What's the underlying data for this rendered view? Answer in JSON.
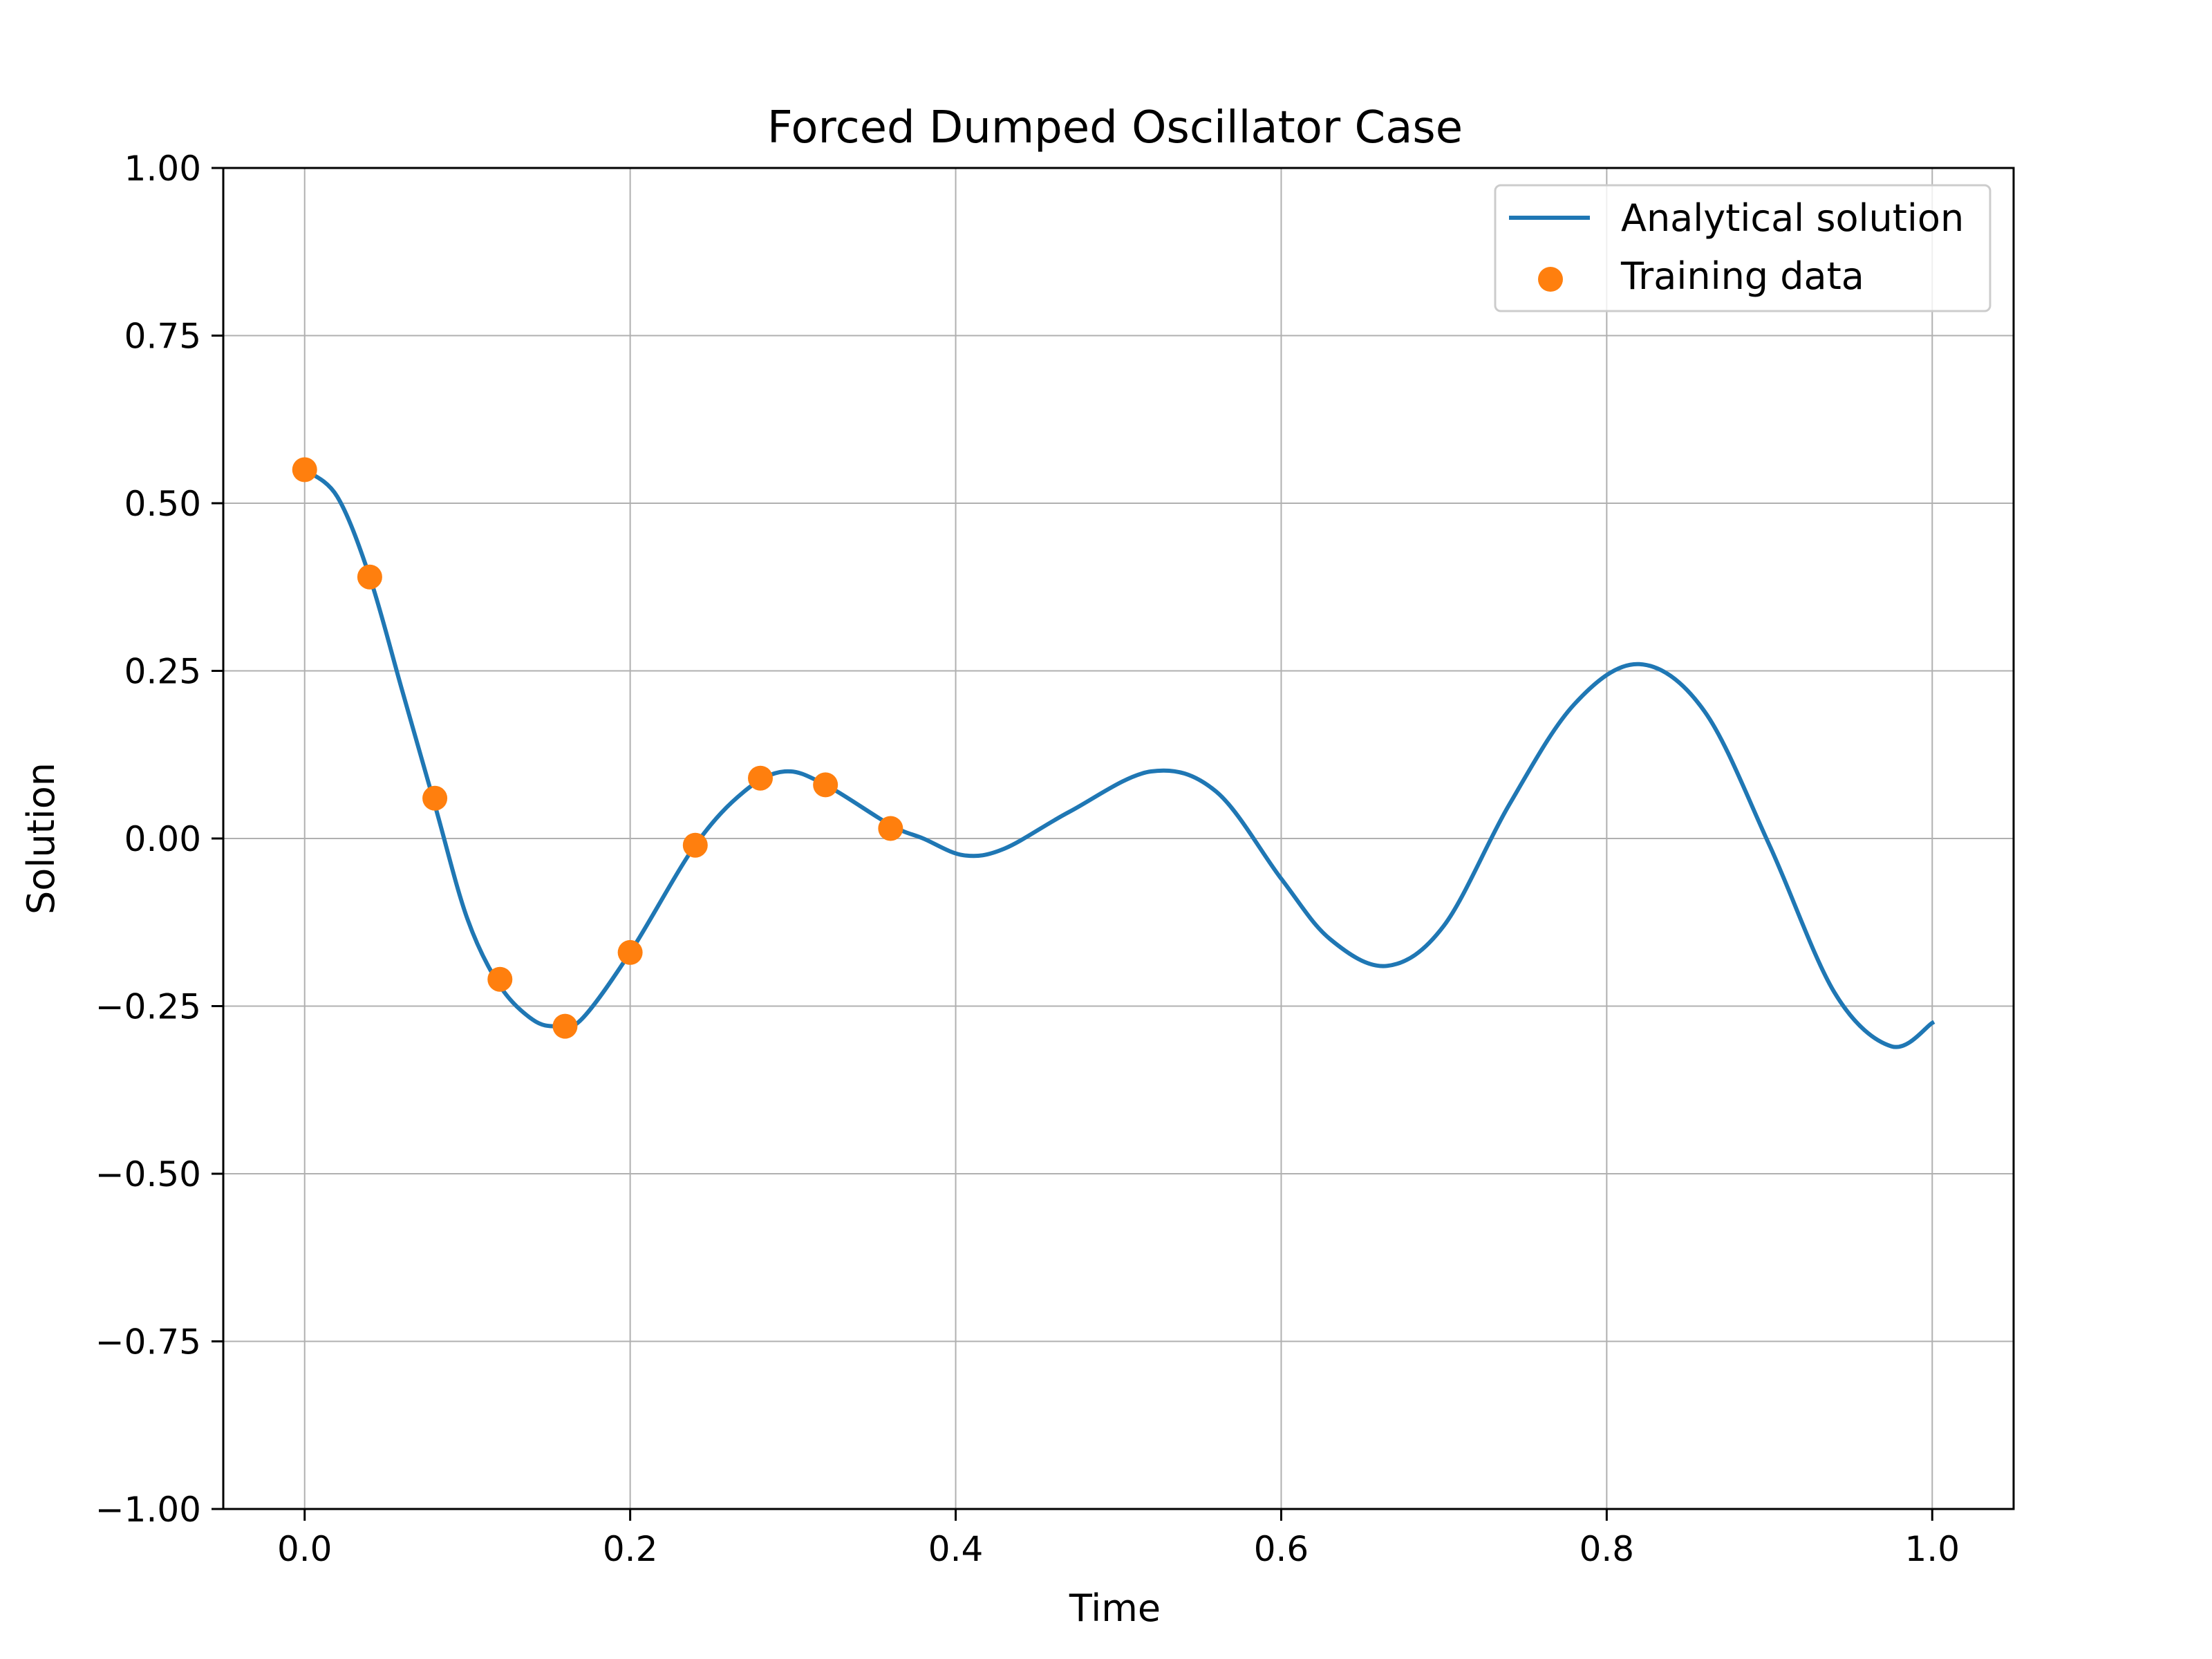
{
  "chart_data": {
    "type": "line",
    "title": "Forced Dumped Oscillator Case",
    "xlabel": "Time",
    "ylabel": "Solution",
    "xlim": [
      -0.05,
      1.05
    ],
    "ylim": [
      -1.0,
      1.0
    ],
    "grid": true,
    "legend_position": "top-right",
    "x_ticks": [
      "0.0",
      "0.2",
      "0.4",
      "0.6",
      "0.8",
      "1.0"
    ],
    "x_tick_values": [
      0.0,
      0.2,
      0.4,
      0.6,
      0.8,
      1.0
    ],
    "y_ticks": [
      "1.00",
      "0.75",
      "0.50",
      "0.25",
      "0.00",
      "−0.25",
      "−0.50",
      "−0.75",
      "−1.00"
    ],
    "y_tick_values": [
      1.0,
      0.75,
      0.5,
      0.25,
      0.0,
      -0.25,
      -0.5,
      -0.75,
      -1.0
    ],
    "series": [
      {
        "name": "Analytical solution",
        "kind": "line",
        "color": "#1f77b4",
        "x": [
          0.0,
          0.02,
          0.04,
          0.06,
          0.08,
          0.1,
          0.12,
          0.14,
          0.155,
          0.17,
          0.2,
          0.24,
          0.27,
          0.295,
          0.32,
          0.36,
          0.38,
          0.405,
          0.43,
          0.47,
          0.52,
          0.56,
          0.6,
          0.63,
          0.665,
          0.7,
          0.74,
          0.78,
          0.82,
          0.86,
          0.9,
          0.94,
          0.975,
          1.0
        ],
        "y": [
          0.55,
          0.51,
          0.39,
          0.22,
          0.05,
          -0.12,
          -0.22,
          -0.27,
          -0.28,
          -0.27,
          -0.17,
          -0.01,
          0.07,
          0.1,
          0.08,
          0.02,
          0.0,
          -0.025,
          -0.015,
          0.04,
          0.1,
          0.07,
          -0.06,
          -0.15,
          -0.19,
          -0.13,
          0.05,
          0.2,
          0.26,
          0.19,
          -0.01,
          -0.23,
          -0.31,
          -0.275
        ]
      },
      {
        "name": "Training data",
        "kind": "scatter",
        "color": "#ff7f0e",
        "x": [
          0.0,
          0.04,
          0.08,
          0.12,
          0.16,
          0.2,
          0.24,
          0.28,
          0.32,
          0.36
        ],
        "y": [
          0.55,
          0.39,
          0.06,
          -0.21,
          -0.28,
          -0.17,
          -0.01,
          0.09,
          0.08,
          0.015
        ]
      }
    ]
  }
}
